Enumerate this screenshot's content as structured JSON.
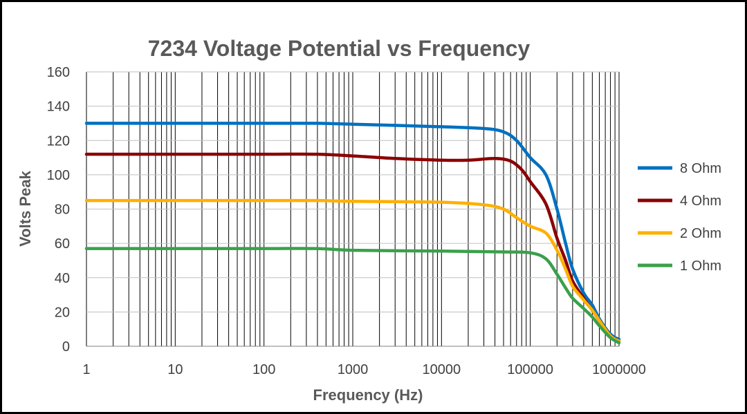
{
  "chart_data": {
    "type": "line",
    "title": "7234 Voltage Potential vs Frequency",
    "xlabel": "Frequency (Hz)",
    "ylabel": "Volts Peak",
    "x_scale": "log",
    "xlim": [
      1,
      1000000
    ],
    "ylim": [
      0,
      160
    ],
    "x_ticks": [
      "1",
      "10",
      "100",
      "1000",
      "10000",
      "100000",
      "1000000"
    ],
    "y_ticks": [
      "0",
      "20",
      "40",
      "60",
      "80",
      "100",
      "120",
      "140",
      "160"
    ],
    "grid": true,
    "legend_position": "right",
    "series": [
      {
        "name": "8 Ohm",
        "color": "#0070C0",
        "x": [
          1,
          10,
          100,
          400,
          1000,
          10000,
          30000,
          50000,
          70000,
          100000,
          150000,
          200000,
          250000,
          300000,
          400000,
          500000,
          600000,
          800000,
          1000000
        ],
        "y": [
          130,
          130,
          130,
          130,
          129.5,
          128,
          127,
          125,
          120,
          110,
          100,
          80,
          60,
          45,
          31,
          24,
          16,
          7,
          4
        ]
      },
      {
        "name": "4 Ohm",
        "color": "#8B0000",
        "x": [
          1,
          10,
          100,
          400,
          1000,
          3000,
          10000,
          20000,
          40000,
          60000,
          80000,
          100000,
          150000,
          200000,
          250000,
          300000,
          400000,
          500000,
          600000,
          800000,
          1000000
        ],
        "y": [
          112,
          112,
          112,
          112,
          111,
          109.5,
          108.5,
          108.5,
          109.5,
          108,
          103,
          96,
          83,
          63,
          50,
          38,
          28,
          21,
          15,
          6,
          3
        ]
      },
      {
        "name": "2 Ohm",
        "color": "#FFB000",
        "x": [
          1,
          10,
          100,
          400,
          1000,
          10000,
          30000,
          50000,
          70000,
          100000,
          150000,
          200000,
          250000,
          300000,
          400000,
          500000,
          600000,
          800000,
          1000000
        ],
        "y": [
          85,
          85,
          85,
          85,
          84.5,
          84,
          82.5,
          80,
          75,
          70,
          66,
          56,
          45,
          35,
          27,
          21,
          15,
          6,
          3
        ]
      },
      {
        "name": "1 Ohm",
        "color": "#3AA04A",
        "x": [
          1,
          10,
          100,
          400,
          1000,
          10000,
          50000,
          100000,
          150000,
          200000,
          250000,
          300000,
          400000,
          500000,
          600000,
          800000,
          1000000
        ],
        "y": [
          57,
          57,
          57,
          57,
          56,
          55.5,
          55,
          54.5,
          51,
          42,
          34,
          28,
          22,
          17,
          12,
          5,
          2
        ]
      }
    ]
  }
}
